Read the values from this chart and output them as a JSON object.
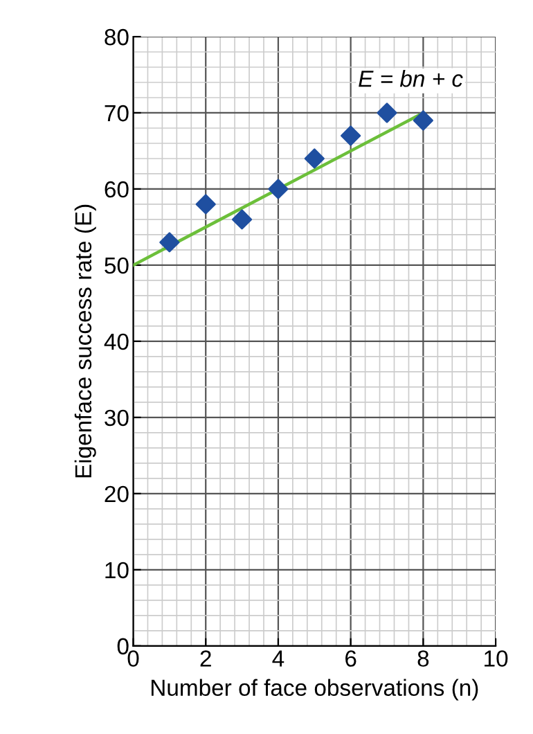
{
  "chart_data": {
    "type": "scatter",
    "xlabel": "Number of face observations (n)",
    "ylabel": "Eigenface success rate (E)",
    "xlim": [
      0,
      10
    ],
    "ylim": [
      0,
      80
    ],
    "xticks": [
      0,
      2,
      4,
      6,
      8,
      10
    ],
    "yticks": [
      0,
      10,
      20,
      30,
      40,
      50,
      60,
      70,
      80
    ],
    "grid": true,
    "series": [
      {
        "marker": "diamond",
        "color": "#1f4fa0",
        "x": [
          1,
          2,
          3,
          4,
          5,
          6,
          7,
          8
        ],
        "values": [
          53,
          58,
          56,
          60,
          64,
          67,
          70,
          69
        ]
      },
      {
        "type": "line",
        "color": "#6cbf3a",
        "x": [
          0,
          8
        ],
        "values": [
          50,
          70
        ]
      }
    ],
    "annotations": [
      "E = bn + c"
    ]
  }
}
